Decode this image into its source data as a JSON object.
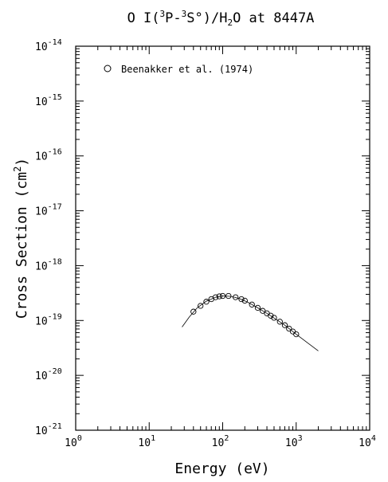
{
  "chart_data": {
    "type": "scatter",
    "title": {
      "t0": "O I(",
      "s1": "3",
      "t2": "P-",
      "s3": "3",
      "t4": "S°)/H",
      "sub5": "2",
      "t6": "O at 8447A"
    },
    "xlabel": "Energy (eV)",
    "ylabel": {
      "main": "Cross Section (cm",
      "sup": "2",
      "close": ")"
    },
    "x_scale": "log",
    "y_scale": "log",
    "xlim": [
      1,
      10000
    ],
    "ylim": [
      1e-21,
      1e-14
    ],
    "x_ticks": [
      {
        "base": "10",
        "exp": "0"
      },
      {
        "base": "10",
        "exp": "1"
      },
      {
        "base": "10",
        "exp": "2"
      },
      {
        "base": "10",
        "exp": "3"
      },
      {
        "base": "10",
        "exp": "4"
      }
    ],
    "y_ticks": [
      {
        "base": "10",
        "exp": "-21"
      },
      {
        "base": "10",
        "exp": "-20"
      },
      {
        "base": "10",
        "exp": "-19"
      },
      {
        "base": "10",
        "exp": "-18"
      },
      {
        "base": "10",
        "exp": "-17"
      },
      {
        "base": "10",
        "exp": "-16"
      },
      {
        "base": "10",
        "exp": "-15"
      },
      {
        "base": "10",
        "exp": "-14"
      }
    ],
    "legend": {
      "position": "top-left",
      "label": "Beenakker et al. (1974)",
      "marker": "open-circle"
    },
    "grid": false,
    "series": [
      {
        "name": "Beenakker et al. (1974)",
        "marker": "open-circle",
        "x": [
          40,
          50,
          60,
          70,
          80,
          90,
          100,
          120,
          150,
          180,
          200,
          250,
          300,
          350,
          400,
          450,
          500,
          600,
          700,
          800,
          900,
          1000
        ],
        "y": [
          1.45e-19,
          1.85e-19,
          2.2e-19,
          2.45e-19,
          2.65e-19,
          2.75e-19,
          2.8e-19,
          2.8e-19,
          2.65e-19,
          2.45e-19,
          2.3e-19,
          1.95e-19,
          1.7e-19,
          1.5e-19,
          1.35e-19,
          1.22e-19,
          1.12e-19,
          9.5e-20,
          8.2e-20,
          7.1e-20,
          6.3e-20,
          5.6e-20
        ]
      },
      {
        "marker": "line",
        "x": [
          28,
          35,
          45,
          60,
          80,
          100,
          130,
          170,
          220,
          300,
          400,
          550,
          700,
          1000,
          1400,
          2000
        ],
        "y": [
          7.6e-20,
          1.15e-19,
          1.7e-19,
          2.25e-19,
          2.65e-19,
          2.8e-19,
          2.75e-19,
          2.5e-19,
          2.15e-19,
          1.7e-19,
          1.35e-19,
          1.02e-19,
          8.2e-20,
          5.6e-20,
          4e-20,
          2.8e-20
        ]
      }
    ],
    "colors": {
      "axes": "#000000",
      "background": "#ffffff"
    }
  }
}
